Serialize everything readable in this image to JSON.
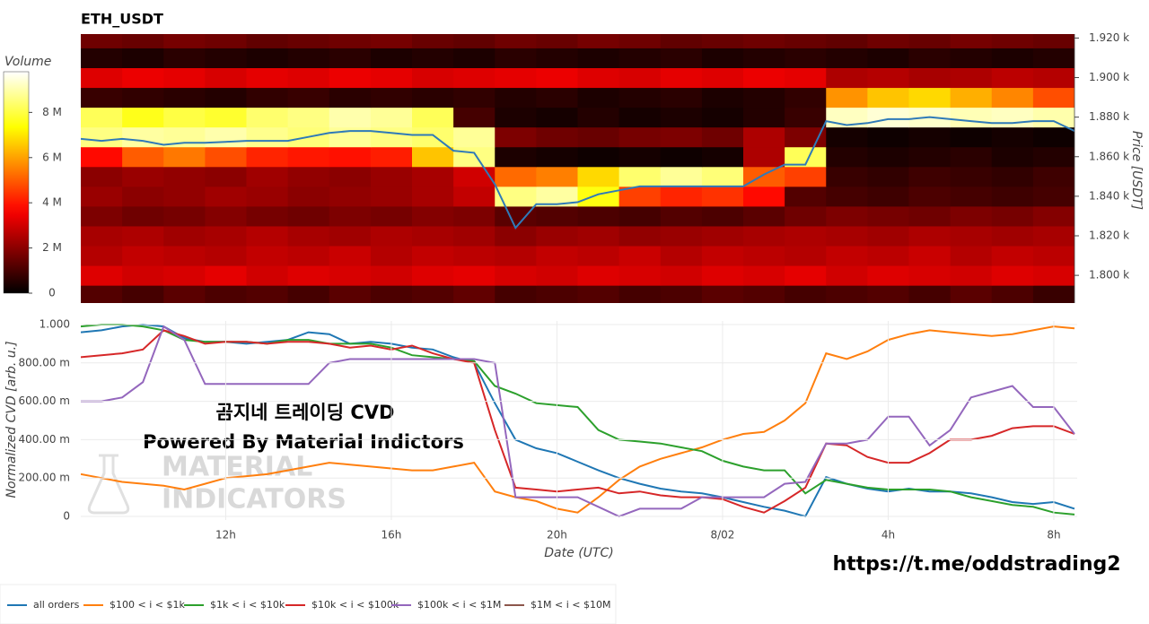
{
  "chart_data": [
    {
      "type": "heatmap",
      "title": "ETH_USDT",
      "ylabel": "Price [USDT]",
      "x_edges": [
        8.5,
        9.5,
        10.5,
        11.5,
        12.5,
        13.5,
        14.5,
        15.5,
        16.5,
        17.5,
        18.5,
        19.5,
        20.5,
        21.5,
        22.5,
        23.5,
        24.5,
        25.5,
        26.5,
        27.5,
        28.5,
        29.5,
        30.5,
        31.5,
        32.5
      ],
      "y_edges": [
        1785,
        1795,
        1805,
        1815,
        1825,
        1835,
        1845,
        1855,
        1865,
        1875,
        1885,
        1895,
        1905,
        1915,
        1925
      ],
      "xlim": [
        8.5,
        32.5
      ],
      "ylim": [
        1786,
        1922
      ],
      "yticks": [
        {
          "value": 1800,
          "label": "1.800 k"
        },
        {
          "value": 1820,
          "label": "1.820 k"
        },
        {
          "value": 1840,
          "label": "1.840 k"
        },
        {
          "value": 1860,
          "label": "1.860 k"
        },
        {
          "value": 1880,
          "label": "1.880 k"
        },
        {
          "value": 1900,
          "label": "1.900 k"
        },
        {
          "value": 1920,
          "label": "1.920 k"
        }
      ],
      "z": [
        [
          1.2,
          1.0,
          1.3,
          1.1,
          1.2,
          1.0,
          1.3,
          1.1,
          1.2,
          1.4,
          1.0,
          1.1,
          1.2,
          1.0,
          1.1,
          1.3,
          1.2,
          1.0,
          1.1,
          1.2,
          1.0,
          1.3,
          1.1,
          0.8
        ],
        [
          3.2,
          3.0,
          3.1,
          3.3,
          3.0,
          3.2,
          3.1,
          3.0,
          3.2,
          3.3,
          3.1,
          3.0,
          3.2,
          3.1,
          3.0,
          3.2,
          3.1,
          3.3,
          3.0,
          3.2,
          3.1,
          3.0,
          3.2,
          3.1
        ],
        [
          2.6,
          2.8,
          2.7,
          2.6,
          2.8,
          2.7,
          2.9,
          2.6,
          2.8,
          2.7,
          2.6,
          2.8,
          2.7,
          2.9,
          2.6,
          2.8,
          2.7,
          2.6,
          2.8,
          2.7,
          2.9,
          2.6,
          2.8,
          2.7
        ],
        [
          2.4,
          2.5,
          2.3,
          2.4,
          2.6,
          2.4,
          2.3,
          2.5,
          2.4,
          2.3,
          2.0,
          2.2,
          2.3,
          2.1,
          2.2,
          2.3,
          2.4,
          2.5,
          2.4,
          2.3,
          2.5,
          2.4,
          2.3,
          2.4
        ],
        [
          1.8,
          1.6,
          1.7,
          1.9,
          1.7,
          1.6,
          1.8,
          1.7,
          1.9,
          1.8,
          1.3,
          1.2,
          1.1,
          1.0,
          1.2,
          1.1,
          1.3,
          1.6,
          1.8,
          1.7,
          1.6,
          1.8,
          1.7,
          1.9
        ],
        [
          2.2,
          2.0,
          2.1,
          2.3,
          2.2,
          2.0,
          2.1,
          2.2,
          2.4,
          2.8,
          8.6,
          8.9,
          7.5,
          4.6,
          4.2,
          4.4,
          3.8,
          1.2,
          1.0,
          0.9,
          1.1,
          1.0,
          0.9,
          1.0
        ],
        [
          2.0,
          2.2,
          2.1,
          2.0,
          2.3,
          2.1,
          2.0,
          2.2,
          2.4,
          3.0,
          5.2,
          5.5,
          6.8,
          8.4,
          8.8,
          8.5,
          5.0,
          4.6,
          0.8,
          0.7,
          0.9,
          0.8,
          0.7,
          0.9
        ],
        [
          3.8,
          5.0,
          5.4,
          4.8,
          4.2,
          4.0,
          3.9,
          4.1,
          6.5,
          8.6,
          0.4,
          0.3,
          0.2,
          0.3,
          0.2,
          0.3,
          2.5,
          8.2,
          0.5,
          0.4,
          0.5,
          0.6,
          0.4,
          0.5
        ],
        [
          8.6,
          8.9,
          8.8,
          9.0,
          8.7,
          8.5,
          8.8,
          8.6,
          8.4,
          8.8,
          1.8,
          1.6,
          1.5,
          1.7,
          1.8,
          1.6,
          2.5,
          1.8,
          0.3,
          0.2,
          0.3,
          0.2,
          0.3,
          0.2
        ],
        [
          8.2,
          7.6,
          8.0,
          7.8,
          8.4,
          8.6,
          9.0,
          8.8,
          8.2,
          1.0,
          0.4,
          0.3,
          0.5,
          0.3,
          0.4,
          0.3,
          0.5,
          0.8,
          9.2,
          9.4,
          9.3,
          9.1,
          9.2,
          9.0
        ],
        [
          0.8,
          0.7,
          0.6,
          0.5,
          0.7,
          0.8,
          0.6,
          0.7,
          0.6,
          0.7,
          0.5,
          0.6,
          0.4,
          0.5,
          0.6,
          0.4,
          0.5,
          0.7,
          5.8,
          6.5,
          6.8,
          6.2,
          5.6,
          4.8
        ],
        [
          3.2,
          3.4,
          3.3,
          3.1,
          3.3,
          3.2,
          3.4,
          3.3,
          3.1,
          3.2,
          3.3,
          3.4,
          3.2,
          3.1,
          3.3,
          3.2,
          3.4,
          3.3,
          2.5,
          2.6,
          2.4,
          2.5,
          2.7,
          2.6
        ],
        [
          0.5,
          0.4,
          0.6,
          0.5,
          0.4,
          0.5,
          0.6,
          0.4,
          0.5,
          0.4,
          0.6,
          0.5,
          0.4,
          0.5,
          0.6,
          0.4,
          0.5,
          0.6,
          0.5,
          0.4,
          0.6,
          0.5,
          0.4,
          0.5
        ],
        [
          1.6,
          1.5,
          1.7,
          1.6,
          1.4,
          1.5,
          1.6,
          1.7,
          1.5,
          1.4,
          1.6,
          1.5,
          1.7,
          1.6,
          1.4,
          1.5,
          1.6,
          1.5,
          1.4,
          1.6,
          1.5,
          1.7,
          1.6,
          1.5
        ]
      ],
      "colorscale": "hot",
      "colorbar": {
        "title": "Volume",
        "zlim": [
          0,
          9.8
        ],
        "ticks": [
          0,
          {
            "value": 2,
            "label": "2 M"
          },
          {
            "value": 4,
            "label": "4 M"
          },
          {
            "value": 6,
            "label": "6 M"
          },
          {
            "value": 8,
            "label": "8 M"
          }
        ]
      },
      "line_color": "#2f7ab8",
      "line_x": [
        8.5,
        9,
        9.5,
        10,
        10.5,
        11,
        11.5,
        12,
        12.5,
        13,
        13.5,
        14,
        14.5,
        15,
        15.5,
        16,
        16.5,
        17,
        17.5,
        18,
        18.5,
        19,
        19.5,
        20,
        20.5,
        21,
        21.5,
        22,
        22.5,
        23,
        23.5,
        24,
        24.5,
        25,
        25.5,
        26,
        26.5,
        27,
        27.5,
        28,
        28.5,
        29,
        29.5,
        30,
        30.5,
        31,
        31.5,
        32,
        32.5
      ],
      "line_values": [
        1869,
        1868,
        1869,
        1868,
        1866,
        1867,
        1867,
        1867.5,
        1868,
        1868,
        1868,
        1870,
        1872,
        1873,
        1873,
        1872,
        1871,
        1871,
        1863,
        1862,
        1846,
        1824,
        1836,
        1836,
        1837,
        1841,
        1843,
        1845,
        1845,
        1845,
        1845,
        1845,
        1845,
        1851,
        1856,
        1856,
        1878,
        1876,
        1877,
        1879,
        1879,
        1880,
        1879,
        1878,
        1877,
        1877,
        1878,
        1878,
        1873
      ]
    },
    {
      "type": "line",
      "xlabel": "Date (UTC)",
      "ylabel": "Normalized CVD [arb. u.]",
      "grid": true,
      "legend": "bottom-left",
      "x": [
        8.5,
        9,
        9.5,
        10,
        10.5,
        11,
        11.5,
        12,
        12.5,
        13,
        13.5,
        14,
        14.5,
        15,
        15.5,
        16,
        16.5,
        17,
        17.5,
        18,
        18.5,
        19,
        19.5,
        20,
        20.5,
        21,
        21.5,
        22,
        22.5,
        23,
        23.5,
        24,
        24.5,
        25,
        25.5,
        26,
        26.5,
        27,
        27.5,
        28,
        28.5,
        29,
        29.5,
        30,
        30.5,
        31,
        31.5,
        32,
        32.5
      ],
      "xlim": [
        8.5,
        32.5
      ],
      "xticks": [
        {
          "value": 12,
          "label": "12h"
        },
        {
          "value": 16,
          "label": "16h"
        },
        {
          "value": 20,
          "label": "20h"
        },
        {
          "value": 24,
          "label": "8/02"
        },
        {
          "value": 28,
          "label": "4h"
        },
        {
          "value": 32,
          "label": "8h"
        }
      ],
      "ylim": [
        0,
        1
      ],
      "yticks": [
        0,
        {
          "value": 0.2,
          "label": "200.00 m"
        },
        {
          "value": 0.4,
          "label": "400.00 m"
        },
        {
          "value": 0.6,
          "label": "600.00 m"
        },
        {
          "value": 0.8,
          "label": "800.00 m"
        },
        {
          "value": 1,
          "label": "1.000"
        }
      ],
      "series": [
        {
          "name": "all orders",
          "color": "#1f77b4",
          "values": [
            0.96,
            0.97,
            0.99,
            1.0,
            0.99,
            0.93,
            0.91,
            0.91,
            0.9,
            0.91,
            0.92,
            0.96,
            0.95,
            0.9,
            0.91,
            0.9,
            0.88,
            0.87,
            0.83,
            0.8,
            0.59,
            0.4,
            0.355,
            0.33,
            0.285,
            0.24,
            0.2,
            0.17,
            0.145,
            0.13,
            0.12,
            0.1,
            0.075,
            0.05,
            0.03,
            0,
            0.205,
            0.17,
            0.145,
            0.13,
            0.145,
            0.13,
            0.13,
            0.12,
            0.1,
            0.075,
            0.065,
            0.075,
            0.04
          ]
        },
        {
          "name": "$100 < i < $1k",
          "color": "#ff7f0e",
          "values": [
            0.22,
            0.2,
            0.18,
            0.17,
            0.16,
            0.14,
            0.17,
            0.2,
            0.21,
            0.22,
            0.24,
            0.26,
            0.28,
            0.27,
            0.26,
            0.25,
            0.24,
            0.24,
            0.26,
            0.28,
            0.13,
            0.1,
            0.08,
            0.04,
            0.02,
            0.1,
            0.19,
            0.26,
            0.3,
            0.33,
            0.36,
            0.4,
            0.43,
            0.44,
            0.5,
            0.59,
            0.85,
            0.82,
            0.86,
            0.92,
            0.95,
            0.97,
            0.96,
            0.95,
            0.94,
            0.95,
            0.97,
            0.99,
            0.98
          ]
        },
        {
          "name": "$1k < i < $10k",
          "color": "#2ca02c",
          "values": [
            0.99,
            1.0,
            1.0,
            0.99,
            0.97,
            0.92,
            0.91,
            0.91,
            0.91,
            0.9,
            0.92,
            0.92,
            0.9,
            0.9,
            0.9,
            0.88,
            0.84,
            0.83,
            0.82,
            0.81,
            0.68,
            0.64,
            0.59,
            0.58,
            0.57,
            0.45,
            0.4,
            0.39,
            0.38,
            0.36,
            0.34,
            0.29,
            0.26,
            0.24,
            0.24,
            0.12,
            0.19,
            0.17,
            0.15,
            0.14,
            0.14,
            0.14,
            0.13,
            0.1,
            0.08,
            0.06,
            0.05,
            0.02,
            0.01
          ]
        },
        {
          "name": "$10k < i < $100k",
          "color": "#d62728",
          "values": [
            0.83,
            0.84,
            0.85,
            0.87,
            0.97,
            0.94,
            0.9,
            0.91,
            0.91,
            0.9,
            0.91,
            0.91,
            0.9,
            0.88,
            0.89,
            0.87,
            0.89,
            0.85,
            0.82,
            0.8,
            0.45,
            0.15,
            0.14,
            0.13,
            0.14,
            0.15,
            0.12,
            0.13,
            0.11,
            0.1,
            0.1,
            0.09,
            0.05,
            0.02,
            0.08,
            0.15,
            0.38,
            0.37,
            0.31,
            0.28,
            0.28,
            0.33,
            0.4,
            0.4,
            0.42,
            0.46,
            0.47,
            0.47,
            0.43
          ]
        },
        {
          "name": "$100k < i < $1M",
          "color": "#9467bd",
          "values": [
            0.6,
            0.6,
            0.62,
            0.7,
            0.99,
            0.92,
            0.69,
            0.69,
            0.69,
            0.69,
            0.69,
            0.69,
            0.8,
            0.82,
            0.82,
            0.82,
            0.82,
            0.82,
            0.82,
            0.82,
            0.8,
            0.1,
            0.1,
            0.1,
            0.1,
            0.05,
            0,
            0.04,
            0.04,
            0.04,
            0.1,
            0.1,
            0.1,
            0.1,
            0.17,
            0.18,
            0.38,
            0.38,
            0.4,
            0.52,
            0.52,
            0.37,
            0.45,
            0.62,
            0.65,
            0.68,
            0.57,
            0.57,
            0.43
          ]
        },
        {
          "name": "$1M < i < $10M",
          "color": "#8c564b",
          "values": [
            null,
            null,
            null,
            null,
            null,
            null,
            null,
            null,
            null,
            null,
            null,
            null,
            null,
            null,
            null,
            null,
            null,
            null,
            null,
            null,
            null,
            null,
            null,
            null,
            null,
            null,
            null,
            null,
            null,
            null,
            null,
            null,
            null,
            null,
            null,
            null,
            null,
            null,
            null,
            null,
            null,
            null,
            null,
            null,
            null,
            null,
            null,
            null,
            null
          ]
        }
      ]
    }
  ],
  "annotations": [
    "곰지네 트레이딩 CVD",
    "Powered By Material Indictors",
    "MATERIAL",
    "INDICATORS",
    "https://t.me/oddstrading2"
  ]
}
